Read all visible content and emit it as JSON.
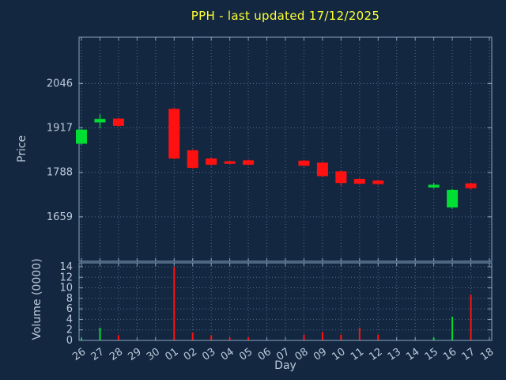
{
  "title": "PPH - last updated 17/12/2025",
  "colors": {
    "background": "#132840",
    "title": "#ffff33",
    "axis_text": "#bcc9da",
    "border": "#8aa3bf",
    "grid": "#4f6a8c",
    "up": "#00dd33",
    "down": "#ff1111"
  },
  "chart_data": {
    "type": "candlestick",
    "title": "PPH - last updated 17/12/2025",
    "xlabel": "Day",
    "ylabel_price": "Price",
    "ylabel_volume": "Volume (0000)",
    "legend": "none",
    "grid": true,
    "x_categories": [
      "26",
      "27",
      "28",
      "29",
      "30",
      "01",
      "02",
      "03",
      "04",
      "05",
      "06",
      "07",
      "08",
      "09",
      "10",
      "11",
      "12",
      "13",
      "14",
      "15",
      "16",
      "17",
      "18"
    ],
    "price_ticks": [
      1659,
      1788,
      1917,
      2046
    ],
    "price_range": [
      1530,
      2180
    ],
    "volume_ticks": [
      0,
      2,
      4,
      6,
      8,
      10,
      12,
      14
    ],
    "volume_range": [
      0,
      14.75
    ],
    "candles": [
      {
        "day": "26",
        "open": 1871,
        "high": 1914,
        "low": 1868,
        "close": 1912,
        "volume": 0.4
      },
      {
        "day": "27",
        "open": 1933,
        "high": 1956,
        "low": 1916,
        "close": 1943,
        "volume": 2.4
      },
      {
        "day": "28",
        "open": 1944,
        "high": 1946,
        "low": 1921,
        "close": 1923,
        "volume": 1.0
      },
      {
        "day": "01",
        "open": 1972,
        "high": 1974,
        "low": 1826,
        "close": 1828,
        "volume": 14.0
      },
      {
        "day": "02",
        "open": 1852,
        "high": 1854,
        "low": 1799,
        "close": 1801,
        "volume": 1.5
      },
      {
        "day": "03",
        "open": 1828,
        "high": 1832,
        "low": 1807,
        "close": 1810,
        "volume": 1.0
      },
      {
        "day": "04",
        "open": 1820,
        "high": 1822,
        "low": 1811,
        "close": 1813,
        "volume": 0.5
      },
      {
        "day": "05",
        "open": 1823,
        "high": 1825,
        "low": 1808,
        "close": 1810,
        "volume": 0.6
      },
      {
        "day": "08",
        "open": 1822,
        "high": 1824,
        "low": 1805,
        "close": 1807,
        "volume": 1.1
      },
      {
        "day": "09",
        "open": 1816,
        "high": 1818,
        "low": 1775,
        "close": 1777,
        "volume": 1.6
      },
      {
        "day": "10",
        "open": 1791,
        "high": 1793,
        "low": 1749,
        "close": 1757,
        "volume": 1.1
      },
      {
        "day": "11",
        "open": 1769,
        "high": 1771,
        "low": 1752,
        "close": 1755,
        "volume": 2.4
      },
      {
        "day": "12",
        "open": 1764,
        "high": 1766,
        "low": 1752,
        "close": 1754,
        "volume": 1.1
      },
      {
        "day": "15",
        "open": 1744,
        "high": 1758,
        "low": 1741,
        "close": 1752,
        "volume": 0.5
      },
      {
        "day": "16",
        "open": 1686,
        "high": 1740,
        "low": 1683,
        "close": 1737,
        "volume": 4.5
      },
      {
        "day": "17",
        "open": 1756,
        "high": 1758,
        "low": 1739,
        "close": 1742,
        "volume": 8.7
      }
    ]
  }
}
